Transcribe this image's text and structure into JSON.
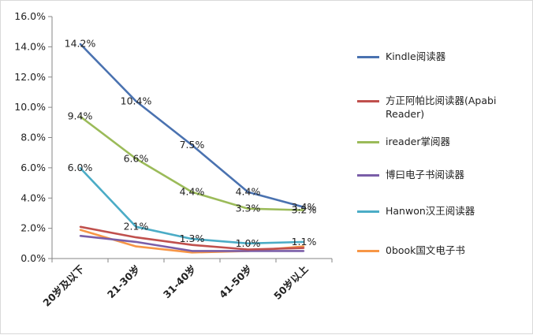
{
  "chart_data": {
    "type": "line",
    "categories": [
      "20岁及以下",
      "21-30岁",
      "31-40岁",
      "41-50岁",
      "50岁以上"
    ],
    "ylim": [
      0,
      16
    ],
    "y_ticks": [
      "0.0%",
      "2.0%",
      "4.0%",
      "6.0%",
      "8.0%",
      "10.0%",
      "12.0%",
      "14.0%",
      "16.0%"
    ],
    "grid": false,
    "legend_position": "right",
    "series": [
      {
        "name": "Kindle阅读器",
        "color": "#4a72b0",
        "values": [
          14.2,
          10.4,
          7.5,
          4.4,
          3.4
        ],
        "labels": [
          "14.2%",
          "10.4%",
          "7.5%",
          "4.4%",
          "3.4%"
        ]
      },
      {
        "name": "方正阿帕比阅读器(Apabi Reader)",
        "color": "#c0504d",
        "values": [
          2.1,
          1.4,
          0.9,
          0.6,
          0.7
        ],
        "labels": []
      },
      {
        "name": "ireader掌阅器",
        "color": "#9bbb59",
        "values": [
          9.4,
          6.6,
          4.4,
          3.3,
          3.2
        ],
        "labels": [
          "9.4%",
          "6.6%",
          "4.4%",
          "3.3%",
          "3.2%"
        ]
      },
      {
        "name": "博曰电子书阅读器",
        "color": "#7a5ea8",
        "values": [
          1.5,
          1.1,
          0.5,
          0.5,
          0.5
        ],
        "labels": []
      },
      {
        "name": "Hanwon汉王阅读器",
        "color": "#4bacc6",
        "values": [
          6.0,
          2.1,
          1.3,
          1.0,
          1.1
        ],
        "labels": [
          "6.0%",
          "2.1%",
          "1.3%",
          "1.0%",
          "1.1%"
        ]
      },
      {
        "name": "0book国文电子书",
        "color": "#f79646",
        "values": [
          1.9,
          0.8,
          0.4,
          0.5,
          0.8
        ],
        "labels": []
      }
    ]
  }
}
